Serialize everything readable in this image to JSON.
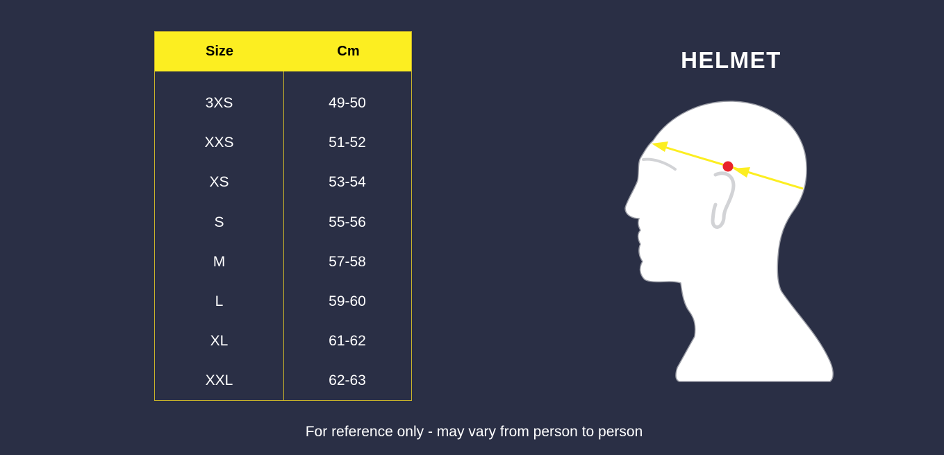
{
  "table": {
    "headers": [
      "Size",
      "Cm"
    ],
    "rows": [
      [
        "3XS",
        "49-50"
      ],
      [
        "XXS",
        "51-52"
      ],
      [
        "XS",
        "53-54"
      ],
      [
        "S",
        "55-56"
      ],
      [
        "M",
        "57-58"
      ],
      [
        "L",
        "59-60"
      ],
      [
        "XL",
        "61-62"
      ],
      [
        "XXL",
        "62-63"
      ]
    ]
  },
  "illustration": {
    "title": "HELMET",
    "icon": "head-profile-measurement-icon",
    "colors": {
      "arrow": "#fcee21",
      "dot": "#e8232a",
      "head": "#ffffff"
    }
  },
  "footer": {
    "note": "For reference only - may vary from person to person"
  },
  "colors": {
    "background": "#2a2f45",
    "header": "#fcee21",
    "border": "#c9b42a"
  }
}
